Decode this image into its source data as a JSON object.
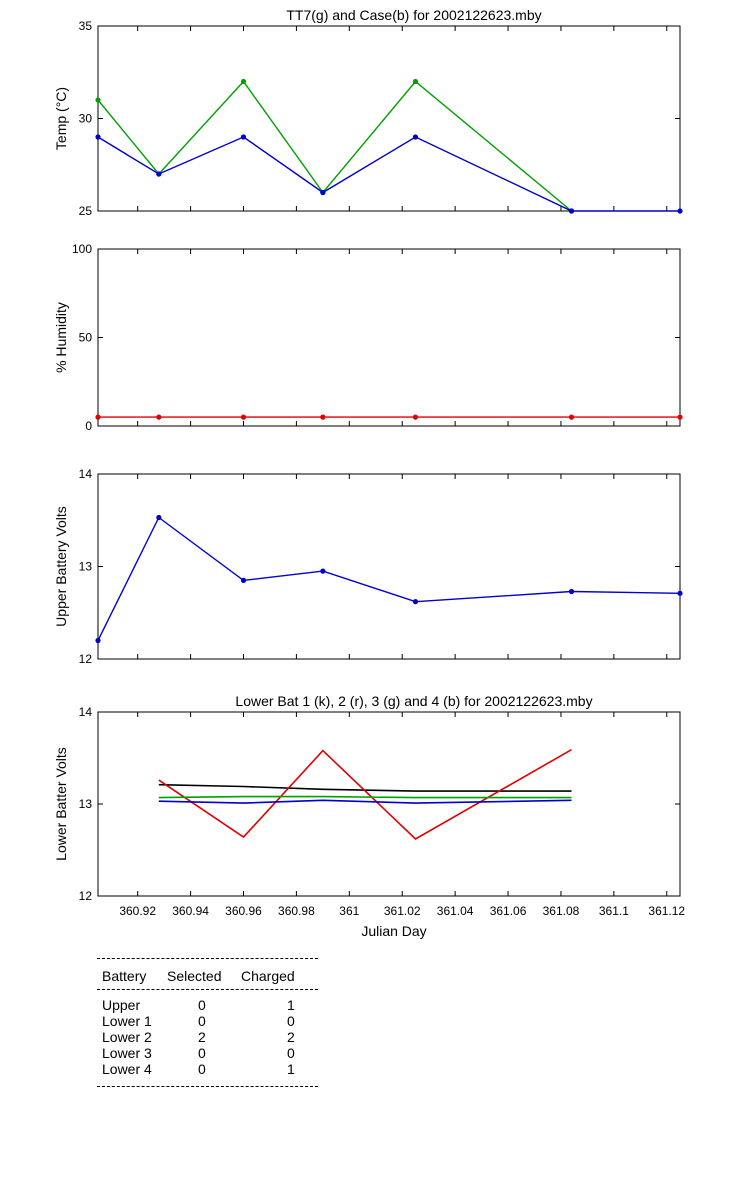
{
  "chart_data": [
    {
      "type": "line",
      "title": "TT7(g) and Case(b) for 2002122623.mby",
      "xlabel": "",
      "ylabel": "Temp  (°C)",
      "xlim": [
        360.905,
        361.125
      ],
      "ylim": [
        25,
        35
      ],
      "yticks": [
        "25",
        "30",
        "35"
      ],
      "grid": false,
      "series": [
        {
          "color": "#00a000",
          "marker": "*",
          "x": [
            360.905,
            360.928,
            360.96,
            360.99,
            361.025,
            361.084
          ],
          "y": [
            31,
            27,
            32,
            26,
            32,
            25
          ]
        },
        {
          "color": "#0000d0",
          "marker": "*",
          "x": [
            360.905,
            360.928,
            360.96,
            360.99,
            361.025,
            361.084,
            361.125
          ],
          "y": [
            29,
            27,
            29,
            26,
            29,
            25,
            25
          ]
        }
      ]
    },
    {
      "type": "line",
      "title": "",
      "xlabel": "",
      "ylabel": "% Humidity",
      "xlim": [
        360.905,
        361.125
      ],
      "ylim": [
        0,
        100
      ],
      "yticks": [
        "0",
        "50",
        "100"
      ],
      "grid": false,
      "series": [
        {
          "color": "#e00000",
          "marker": "*",
          "x": [
            360.905,
            360.928,
            360.96,
            360.99,
            361.025,
            361.084,
            361.125
          ],
          "y": [
            5,
            5,
            5,
            5,
            5,
            5,
            5
          ]
        }
      ]
    },
    {
      "type": "line",
      "title": "",
      "xlabel": "",
      "ylabel": "Upper Battery Volts",
      "xlim": [
        360.905,
        361.125
      ],
      "ylim": [
        12,
        14
      ],
      "yticks": [
        "12",
        "13",
        "14"
      ],
      "grid": false,
      "series": [
        {
          "color": "#0000d0",
          "marker": "*",
          "x": [
            360.905,
            360.928,
            360.96,
            360.99,
            361.025,
            361.084,
            361.125
          ],
          "y": [
            12.2,
            13.53,
            12.85,
            12.95,
            12.62,
            12.73,
            12.71
          ]
        }
      ]
    },
    {
      "type": "line",
      "title": "Lower Bat 1 (k), 2 (r), 3 (g) and 4 (b) for 2002122623.mby",
      "xlabel": "Julian Day",
      "ylabel": "Lower Batter Volts",
      "xlim": [
        360.905,
        361.125
      ],
      "ylim": [
        12,
        14
      ],
      "yticks": [
        "12",
        "13",
        "14"
      ],
      "xticks": [
        "360.92",
        "360.94",
        "360.96",
        "360.98",
        "361",
        "361.02",
        "361.04",
        "361.06",
        "361.08",
        "361.1",
        "361.12"
      ],
      "grid": false,
      "series": [
        {
          "color": "#000000",
          "marker": "",
          "x": [
            360.928,
            360.96,
            360.99,
            361.025,
            361.084
          ],
          "y": [
            13.21,
            13.19,
            13.16,
            13.14,
            13.14
          ]
        },
        {
          "color": "#e00000",
          "marker": "",
          "x": [
            360.928,
            360.96,
            360.99,
            361.025,
            361.084
          ],
          "y": [
            13.26,
            12.64,
            13.58,
            12.62,
            13.59
          ]
        },
        {
          "color": "#00a000",
          "marker": "",
          "x": [
            360.928,
            360.96,
            360.99,
            361.025,
            361.084
          ],
          "y": [
            13.07,
            13.08,
            13.08,
            13.07,
            13.07
          ]
        },
        {
          "color": "#0000d0",
          "marker": "",
          "x": [
            360.928,
            360.96,
            360.99,
            361.025,
            361.084
          ],
          "y": [
            13.03,
            13.01,
            13.04,
            13.01,
            13.04
          ]
        }
      ]
    }
  ],
  "battery_table": {
    "headers": [
      "Battery",
      "Selected",
      "Charged"
    ],
    "rows": [
      [
        "Upper",
        "0",
        "1"
      ],
      [
        "Lower 1",
        "0",
        "0"
      ],
      [
        "Lower 2",
        "2",
        "2"
      ],
      [
        "Lower 3",
        "0",
        "0"
      ],
      [
        "Lower 4",
        "0",
        "1"
      ]
    ]
  }
}
